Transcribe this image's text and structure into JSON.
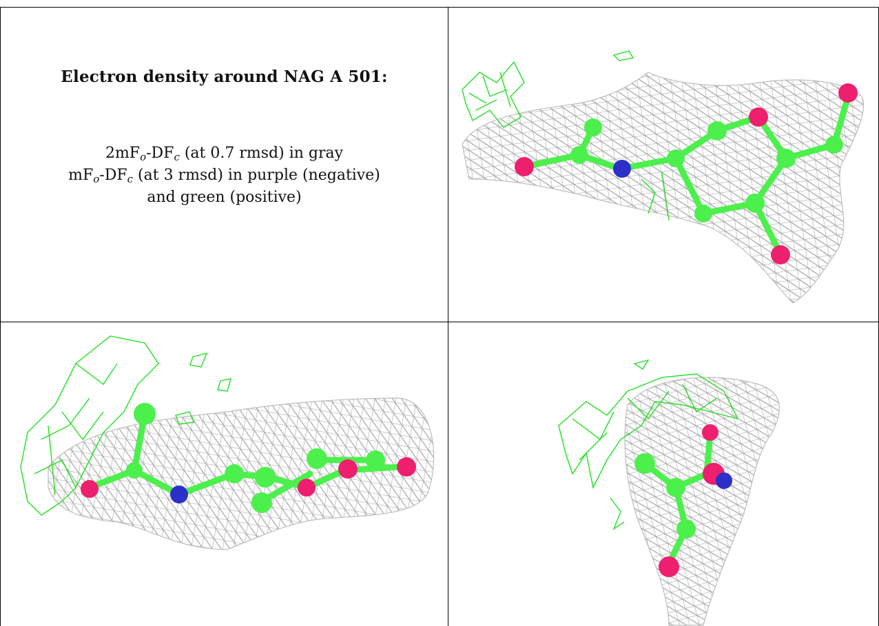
{
  "caption": {
    "title": "Electron density around NAG A 501:",
    "line1": {
      "prefix": "2mF",
      "s1": "o",
      "mid": "-DF",
      "s2": "c",
      "suffix": " (at 0.7 rmsd) in gray"
    },
    "line2": {
      "prefix": "mF",
      "s1": "o",
      "mid": "-DF",
      "s2": "c",
      "suffix": " (at 3 rmsd) in purple (negative)"
    },
    "line3": "and green (positive)"
  },
  "colors": {
    "density_2fofc": "#a9a9a9",
    "positive_difference": "#22e022",
    "negative_difference": "#9b30c0",
    "carbon": "#4cf04c",
    "oxygen": "#ee1f6e",
    "nitrogen": "#2a30c8",
    "border": "#000000"
  }
}
